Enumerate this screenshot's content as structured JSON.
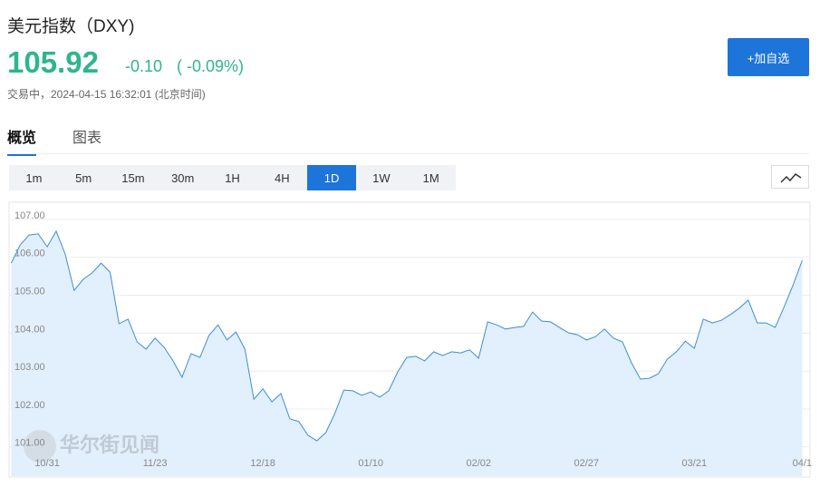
{
  "header": {
    "title": "美元指数（DXY)",
    "price": "105.92",
    "change": "-0.10",
    "change_pct": "( -0.09%)",
    "status": "交易中，2024-04-15 16:32:01 (北京时间)",
    "button": "+加自选"
  },
  "tabs": [
    "概览",
    "图表"
  ],
  "intervals": [
    "1m",
    "5m",
    "15m",
    "30m",
    "1H",
    "4H",
    "1D",
    "1W",
    "1M"
  ],
  "active_interval": "1D",
  "watermark": "华尔街见闻",
  "chart_data": {
    "type": "line",
    "categories": [
      null,
      null,
      null,
      null,
      "10/31",
      null,
      null,
      null,
      null,
      null,
      null,
      null,
      null,
      null,
      null,
      null,
      "11/23",
      null,
      null,
      null,
      null,
      null,
      null,
      null,
      null,
      null,
      null,
      null,
      "12/18",
      null,
      null,
      null,
      null,
      null,
      null,
      null,
      null,
      null,
      null,
      null,
      "01/10",
      null,
      null,
      null,
      null,
      null,
      null,
      null,
      null,
      null,
      null,
      null,
      "02/02",
      null,
      null,
      null,
      null,
      null,
      null,
      null,
      null,
      null,
      null,
      null,
      "02/27",
      null,
      null,
      null,
      null,
      null,
      null,
      null,
      null,
      null,
      null,
      null,
      "03/21",
      null,
      null,
      null,
      null,
      null,
      null,
      null,
      null,
      null,
      null,
      null,
      "04/1"
    ],
    "series": [
      {
        "color": "#3b8edb",
        "values": [
          105.85,
          106.33,
          106.59,
          106.62,
          106.28,
          106.69,
          106.09,
          105.13,
          105.42,
          105.59,
          105.85,
          105.61,
          104.25,
          104.37,
          103.77,
          103.58,
          103.87,
          103.63,
          103.27,
          102.84,
          103.46,
          103.36,
          103.94,
          104.22,
          103.82,
          104.03,
          103.58,
          102.26,
          102.53,
          102.19,
          102.41,
          101.74,
          101.67,
          101.31,
          101.16,
          101.38,
          101.88,
          102.5,
          102.48,
          102.36,
          102.45,
          102.31,
          102.48,
          102.98,
          103.36,
          103.39,
          103.27,
          103.51,
          103.41,
          103.51,
          103.48,
          103.56,
          103.34,
          104.3,
          104.22,
          104.11,
          104.15,
          104.18,
          104.56,
          104.32,
          104.3,
          104.15,
          104.01,
          103.96,
          103.82,
          103.91,
          104.11,
          103.87,
          103.77,
          103.22,
          102.79,
          102.81,
          102.93,
          103.32,
          103.51,
          103.79,
          103.6,
          104.37,
          104.27,
          104.34,
          104.49,
          104.66,
          104.87,
          104.27,
          104.27,
          104.15,
          104.7,
          105.28,
          105.92
        ]
      }
    ],
    "ylim": [
      100.23,
      107.43
    ],
    "yticks": [
      {
        "value": 101,
        "label": "101.00"
      },
      {
        "value": 102,
        "label": "102.00"
      },
      {
        "value": 103,
        "label": "103.00"
      },
      {
        "value": 104,
        "label": "104.00"
      },
      {
        "value": 105,
        "label": "105.00"
      },
      {
        "value": 106,
        "label": "106.00"
      },
      {
        "value": 107,
        "label": "107.00"
      }
    ],
    "grid": true
  }
}
